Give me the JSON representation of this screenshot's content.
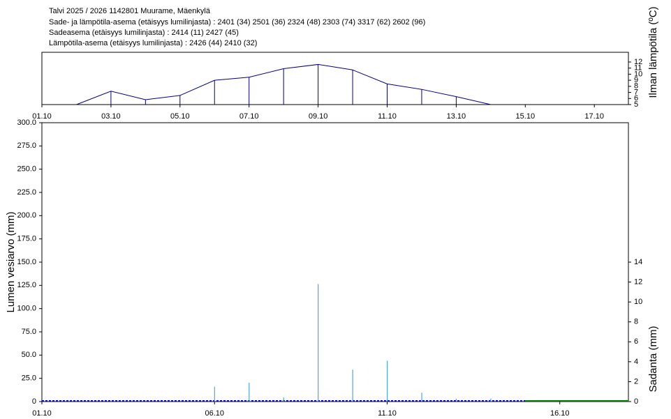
{
  "header": {
    "lines": [
      "Talvi 2025 / 2026 1142801 Muurame, Mäenkylä",
      "Sade- ja lämpötila-asema (etäisyys lumilinjasta) :  2401 (34) 2501 (36) 2324 (48) 2303 (74) 3317 (62) 2602 (96)",
      "Sadeasema (etäisyys lumilinjasta) :  2414 (11) 2427 (45)",
      "Lämpötila-asema (etäisyys lumilinjasta) :  2426 (44) 2410 (32)"
    ]
  },
  "chart_data": [
    {
      "type": "line",
      "y_label": "Ilman lämpötila (ºC)",
      "color": "#000080",
      "categories": [
        "01.10",
        null,
        "03.10",
        null,
        "05.10",
        null,
        "07.10",
        null,
        "09.10",
        null,
        "11.10",
        null,
        "13.10",
        null,
        "15.10",
        null,
        "17.10",
        null
      ],
      "values": [
        null,
        5,
        7.2,
        5.8,
        6.5,
        9.0,
        9.5,
        10.9,
        11.6,
        10.7,
        8.4,
        7.5,
        6.3,
        5.0,
        null,
        null,
        null,
        null
      ],
      "ylim": [
        5,
        13.6
      ],
      "yticks": [
        5,
        6,
        7,
        8,
        9,
        10,
        11,
        12
      ]
    },
    {
      "type": "combo",
      "y_label": "Lumen vesiarvo (mm)",
      "y2_label": "Sadanta (mm)",
      "categories": [
        "01.10",
        null,
        null,
        null,
        null,
        "06.10",
        null,
        null,
        null,
        null,
        "11.10",
        null,
        null,
        null,
        null,
        "16.10",
        null,
        null
      ],
      "series": [
        {
          "color": "#0000ff",
          "values": [
            0,
            0,
            0,
            0,
            0,
            0,
            0,
            0,
            0,
            0,
            0,
            0,
            0,
            0,
            0,
            null,
            null,
            null
          ]
        },
        {
          "color": "#008000",
          "values": [
            null,
            null,
            null,
            null,
            null,
            null,
            null,
            null,
            null,
            null,
            null,
            null,
            null,
            null,
            0,
            0,
            0,
            0
          ]
        },
        {
          "color": "#4da6e6",
          "type": "bar",
          "axis": "y2",
          "values": [
            null,
            null,
            null,
            null,
            null,
            1.5,
            1.9,
            0.4,
            11.8,
            3.2,
            4.1,
            0.9,
            0.3,
            0.3,
            null,
            null,
            null,
            null
          ]
        }
      ],
      "ylim": [
        0,
        300
      ],
      "yticks": [
        0,
        {
          "value": 25,
          "label": "25.0"
        },
        {
          "value": 50,
          "label": "50.0"
        },
        {
          "value": 75,
          "label": "75.0"
        },
        {
          "value": 100,
          "label": "100.0"
        },
        {
          "value": 125,
          "label": "125.0"
        },
        {
          "value": 150,
          "label": "150.0"
        },
        {
          "value": 175,
          "label": "175.0"
        },
        {
          "value": 200,
          "label": "200.0"
        },
        {
          "value": 225,
          "label": "225.0"
        },
        {
          "value": 250,
          "label": "250.0"
        },
        {
          "value": 275,
          "label": "275.0"
        },
        {
          "value": 300,
          "label": "300.0"
        }
      ],
      "y2lim": [
        0,
        28
      ],
      "y2ticks": [
        0,
        2,
        4,
        6,
        8,
        10,
        12,
        14
      ]
    }
  ]
}
